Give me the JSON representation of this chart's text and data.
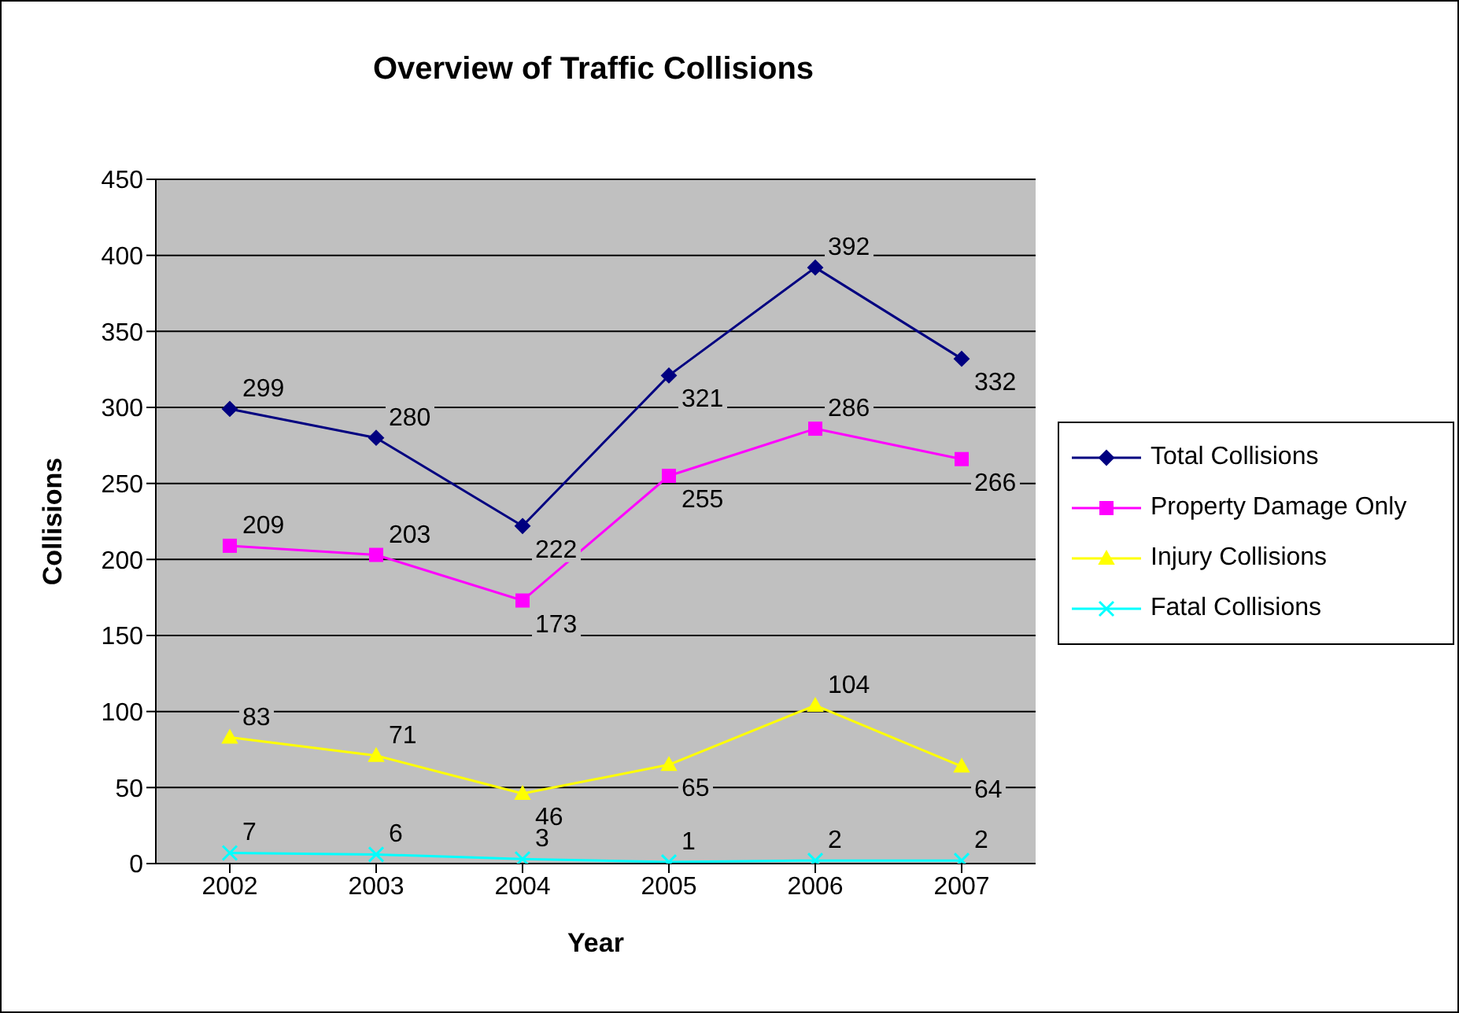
{
  "chart_data": {
    "type": "line",
    "title": "Overview of Traffic Collisions",
    "xlabel": "Year",
    "ylabel": "Collisions",
    "categories": [
      "2002",
      "2003",
      "2004",
      "2005",
      "2006",
      "2007"
    ],
    "series": [
      {
        "name": "Total Collisions",
        "color": "#000080",
        "marker": "diamond",
        "values": [
          299,
          280,
          222,
          321,
          392,
          332
        ]
      },
      {
        "name": "Property Damage Only",
        "color": "#ff00ff",
        "marker": "square",
        "values": [
          209,
          203,
          173,
          255,
          286,
          266
        ]
      },
      {
        "name": "Injury Collisions",
        "color": "#ffff00",
        "marker": "triangle",
        "values": [
          83,
          71,
          46,
          65,
          104,
          64
        ]
      },
      {
        "name": "Fatal Collisions",
        "color": "#00ffff",
        "marker": "cross",
        "values": [
          7,
          6,
          3,
          1,
          2,
          2
        ]
      }
    ],
    "ylim": [
      0,
      450
    ],
    "yticks": [
      0,
      50,
      100,
      150,
      200,
      250,
      300,
      350,
      400,
      450
    ],
    "grid": "y",
    "legend": "right",
    "data_labels": true,
    "line_style": "solid"
  }
}
